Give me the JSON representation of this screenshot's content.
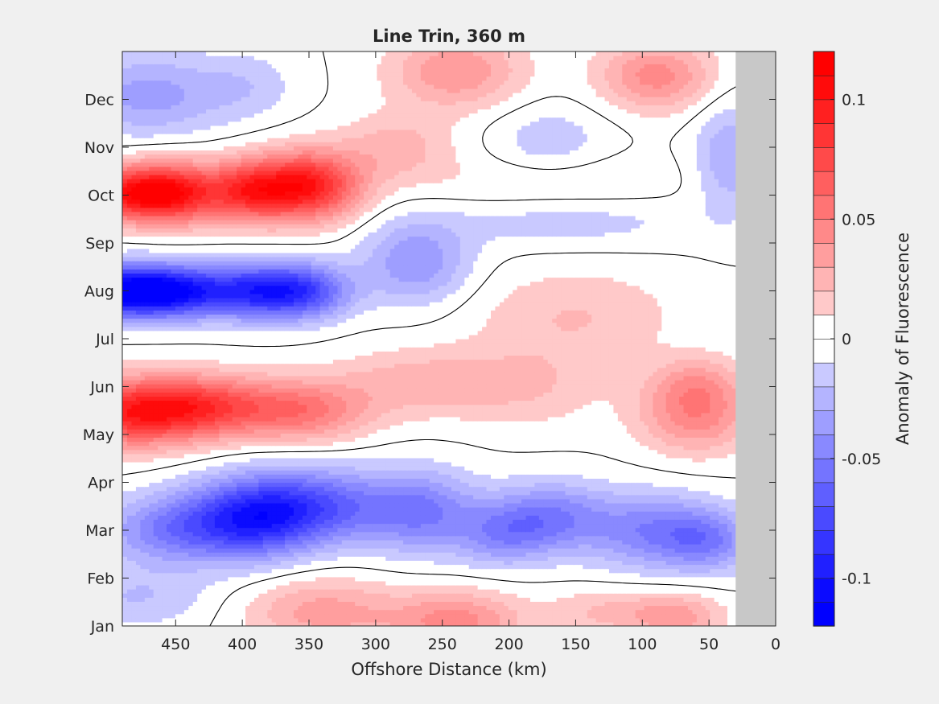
{
  "chart_data": {
    "type": "heatmap",
    "subtype": "filled-contour",
    "title": "Line Trin, 360 m",
    "xlabel": "Offshore Distance (km)",
    "ylabel": "",
    "x_reversed": true,
    "xlim": [
      0,
      490
    ],
    "xticks": [
      450,
      400,
      350,
      300,
      250,
      200,
      150,
      100,
      50,
      0
    ],
    "ylim": [
      0,
      12
    ],
    "yticks": [
      {
        "value": 0,
        "label": "Jan"
      },
      {
        "value": 1,
        "label": "Feb"
      },
      {
        "value": 2,
        "label": "Mar"
      },
      {
        "value": 3,
        "label": "Apr"
      },
      {
        "value": 4,
        "label": "May"
      },
      {
        "value": 5,
        "label": "Jun"
      },
      {
        "value": 6,
        "label": "Jul"
      },
      {
        "value": 7,
        "label": "Aug"
      },
      {
        "value": 8,
        "label": "Sep"
      },
      {
        "value": 9,
        "label": "Oct"
      },
      {
        "value": 10,
        "label": "Nov"
      },
      {
        "value": 11,
        "label": "Dec"
      }
    ],
    "no_data_x_range": [
      0,
      30
    ],
    "colorbar": {
      "label": "Anomaly of Fluorescence",
      "range": [
        -0.12,
        0.12
      ],
      "step": 0.01,
      "ticks": [
        {
          "value": -0.1,
          "label": "-0.1"
        },
        {
          "value": -0.05,
          "label": "-0.05"
        },
        {
          "value": 0,
          "label": "0"
        },
        {
          "value": 0.05,
          "label": "0.05"
        },
        {
          "value": 0.1,
          "label": "0.1"
        }
      ],
      "neutral_band": [
        -0.01,
        0.01
      ]
    },
    "colors": {
      "positive": "#ff0000",
      "negative": "#0000ff",
      "neutral": "#ffffff",
      "no_data": "#c8c8c8",
      "contour": "#000000",
      "figure_background": "#f0f0f0"
    },
    "anomaly_centers": [
      {
        "x": 488,
        "y": 4.45,
        "value": 0.08,
        "sx": 40,
        "sy": 0.5
      },
      {
        "x": 430,
        "y": 4.6,
        "value": 0.065,
        "sx": 38,
        "sy": 0.45
      },
      {
        "x": 355,
        "y": 4.5,
        "value": 0.05,
        "sx": 35,
        "sy": 0.45
      },
      {
        "x": 270,
        "y": 5.1,
        "value": 0.025,
        "sx": 45,
        "sy": 0.5
      },
      {
        "x": 185,
        "y": 5.0,
        "value": 0.018,
        "sx": 40,
        "sy": 0.6
      },
      {
        "x": 60,
        "y": 4.4,
        "value": 0.045,
        "sx": 30,
        "sy": 0.55
      },
      {
        "x": 60,
        "y": 5.1,
        "value": 0.025,
        "sx": 25,
        "sy": 0.4
      },
      {
        "x": 150,
        "y": 6.5,
        "value": 0.02,
        "sx": 55,
        "sy": 0.7
      },
      {
        "x": 488,
        "y": 7.0,
        "value": -0.11,
        "sx": 30,
        "sy": 0.38
      },
      {
        "x": 445,
        "y": 7.0,
        "value": -0.07,
        "sx": 28,
        "sy": 0.38
      },
      {
        "x": 395,
        "y": 7.0,
        "value": -0.065,
        "sx": 25,
        "sy": 0.4
      },
      {
        "x": 355,
        "y": 7.0,
        "value": -0.075,
        "sx": 25,
        "sy": 0.4
      },
      {
        "x": 270,
        "y": 7.6,
        "value": -0.04,
        "sx": 28,
        "sy": 0.6
      },
      {
        "x": 160,
        "y": 8.5,
        "value": -0.018,
        "sx": 70,
        "sy": 0.4
      },
      {
        "x": 488,
        "y": 9.05,
        "value": 0.085,
        "sx": 30,
        "sy": 0.4
      },
      {
        "x": 450,
        "y": 9.05,
        "value": 0.075,
        "sx": 25,
        "sy": 0.45
      },
      {
        "x": 395,
        "y": 9.1,
        "value": 0.075,
        "sx": 23,
        "sy": 0.45
      },
      {
        "x": 350,
        "y": 9.2,
        "value": 0.095,
        "sx": 27,
        "sy": 0.5
      },
      {
        "x": 170,
        "y": 9.2,
        "value": 0.015,
        "sx": 65,
        "sy": 0.45
      },
      {
        "x": 470,
        "y": 11.1,
        "value": -0.035,
        "sx": 40,
        "sy": 0.6
      },
      {
        "x": 395,
        "y": 11.3,
        "value": -0.015,
        "sx": 25,
        "sy": 0.5
      },
      {
        "x": 240,
        "y": 11.6,
        "value": 0.04,
        "sx": 35,
        "sy": 0.55
      },
      {
        "x": 285,
        "y": 10.0,
        "value": 0.025,
        "sx": 30,
        "sy": 0.5
      },
      {
        "x": 170,
        "y": 10.1,
        "value": -0.018,
        "sx": 30,
        "sy": 0.55
      },
      {
        "x": 90,
        "y": 11.5,
        "value": 0.045,
        "sx": 30,
        "sy": 0.5
      },
      {
        "x": 35,
        "y": 9.8,
        "value": -0.03,
        "sx": 18,
        "sy": 0.8
      },
      {
        "x": 360,
        "y": 2.5,
        "value": -0.075,
        "sx": 48,
        "sy": 0.55
      },
      {
        "x": 455,
        "y": 2.0,
        "value": -0.045,
        "sx": 35,
        "sy": 0.5
      },
      {
        "x": 395,
        "y": 2.1,
        "value": -0.05,
        "sx": 32,
        "sy": 0.55
      },
      {
        "x": 265,
        "y": 2.4,
        "value": -0.045,
        "sx": 30,
        "sy": 0.6
      },
      {
        "x": 205,
        "y": 1.9,
        "value": -0.035,
        "sx": 25,
        "sy": 0.45
      },
      {
        "x": 170,
        "y": 2.3,
        "value": -0.045,
        "sx": 30,
        "sy": 0.5
      },
      {
        "x": 95,
        "y": 2.0,
        "value": -0.045,
        "sx": 35,
        "sy": 0.55
      },
      {
        "x": 50,
        "y": 1.8,
        "value": -0.04,
        "sx": 25,
        "sy": 0.45
      },
      {
        "x": 480,
        "y": 0.6,
        "value": -0.02,
        "sx": 40,
        "sy": 0.45
      },
      {
        "x": 340,
        "y": 0.3,
        "value": 0.035,
        "sx": 40,
        "sy": 0.5
      },
      {
        "x": 240,
        "y": 0.1,
        "value": 0.045,
        "sx": 35,
        "sy": 0.45
      },
      {
        "x": 130,
        "y": 0.3,
        "value": 0.02,
        "sx": 30,
        "sy": 0.35
      },
      {
        "x": 75,
        "y": 0.2,
        "value": 0.035,
        "sx": 25,
        "sy": 0.35
      }
    ]
  }
}
